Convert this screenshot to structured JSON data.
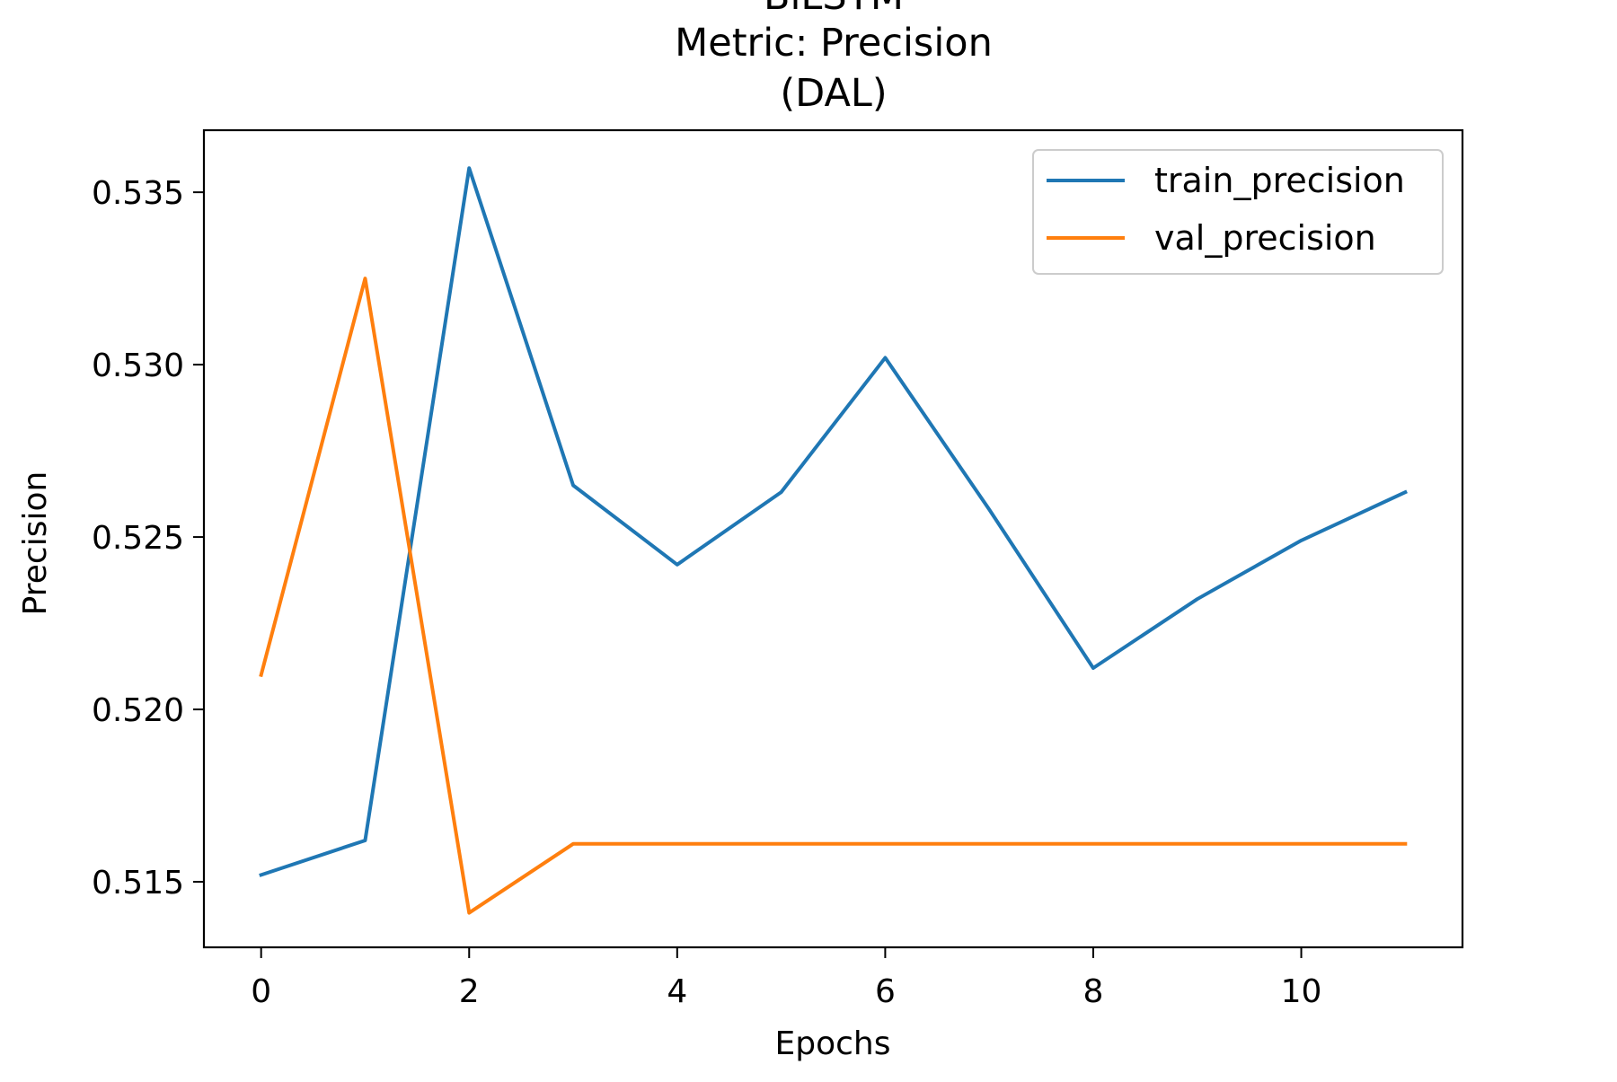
{
  "title_lines": [
    "BiLSTM",
    "Metric: Precision",
    "(DAL)"
  ],
  "chart_data": {
    "type": "line",
    "xlabel": "Epochs",
    "ylabel": "Precision",
    "x": [
      0,
      1,
      2,
      3,
      4,
      5,
      6,
      7,
      8,
      9,
      10,
      11
    ],
    "series": [
      {
        "name": "train_precision",
        "color": "#1f77b4",
        "values": [
          0.5152,
          0.5162,
          0.5357,
          0.5265,
          0.5242,
          0.5263,
          0.5302,
          0.5258,
          0.5212,
          0.5232,
          0.5249,
          0.5263
        ]
      },
      {
        "name": "val_precision",
        "color": "#ff7f0e",
        "values": [
          0.521,
          0.5325,
          0.5141,
          0.5161,
          0.5161,
          0.5161,
          0.5161,
          0.5161,
          0.5161,
          0.5161,
          0.5161,
          0.5161
        ]
      }
    ],
    "xlim": [
      -0.55,
      11.55
    ],
    "ylim": [
      0.5131,
      0.5368
    ],
    "xticks": [
      0,
      2,
      4,
      6,
      8,
      10
    ],
    "yticks": [
      0.515,
      0.52,
      0.525,
      0.53,
      0.535
    ],
    "ytick_labels": [
      "0.515",
      "0.520",
      "0.525",
      "0.530",
      "0.535"
    ],
    "grid": false,
    "legend_position": "top-right"
  }
}
